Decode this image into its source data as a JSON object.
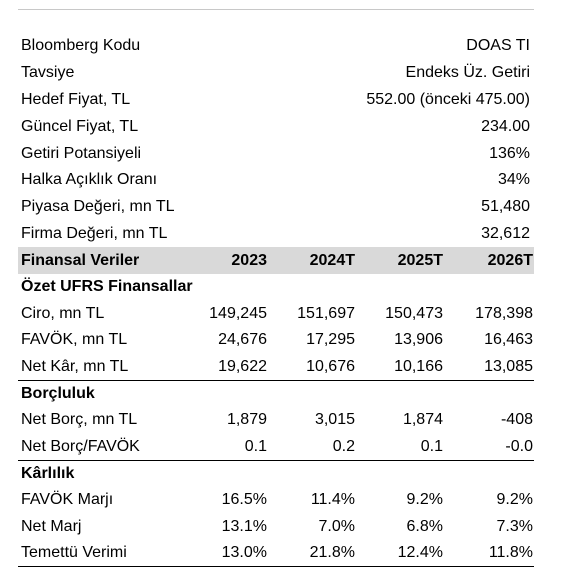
{
  "info": [
    {
      "label": "Bloomberg Kodu",
      "value": "DOAS TI"
    },
    {
      "label": "Tavsiye",
      "value": "Endeks Üz. Getiri"
    },
    {
      "label": "Hedef Fiyat, TL",
      "value": "552.00 (önceki 475.00)"
    },
    {
      "label": "Güncel Fiyat, TL",
      "value": "234.00"
    },
    {
      "label": "Getiri Potansiyeli",
      "value": "136%"
    },
    {
      "label": "Halka Açıklık Oranı",
      "value": "34%"
    },
    {
      "label": "Piyasa Değeri, mn TL",
      "value": "51,480"
    },
    {
      "label": "Firma Değeri, mn TL",
      "value": "32,612"
    }
  ],
  "header": {
    "title": "Finansal Veriler",
    "cols": [
      "2023",
      "2024T",
      "2025T",
      "2026T"
    ]
  },
  "sections": [
    {
      "title": "Özet UFRS Finansallar",
      "rows": [
        {
          "label": "Ciro, mn TL",
          "values": [
            "149,245",
            "151,697",
            "150,473",
            "178,398"
          ]
        },
        {
          "label": "FAVÖK, mn TL",
          "values": [
            "24,676",
            "17,295",
            "13,906",
            "16,463"
          ]
        },
        {
          "label": "Net Kâr, mn TL",
          "values": [
            "19,622",
            "10,676",
            "10,166",
            "13,085"
          ]
        }
      ]
    },
    {
      "title": "Borçluluk",
      "rows": [
        {
          "label": "Net Borç, mn TL",
          "values": [
            "1,879",
            "3,015",
            "1,874",
            "-408"
          ]
        },
        {
          "label": "Net Borç/FAVÖK",
          "values": [
            "0.1",
            "0.2",
            "0.1",
            "-0.0"
          ]
        }
      ]
    },
    {
      "title": "Kârlılık",
      "rows": [
        {
          "label": "FAVÖK Marjı",
          "values": [
            "16.5%",
            "11.4%",
            "9.2%",
            "9.2%"
          ]
        },
        {
          "label": "Net Marj",
          "values": [
            "13.1%",
            "7.0%",
            "6.8%",
            "7.3%"
          ]
        },
        {
          "label": "Temettü Verimi",
          "values": [
            "13.0%",
            "21.8%",
            "12.4%",
            "11.8%"
          ]
        }
      ]
    }
  ]
}
